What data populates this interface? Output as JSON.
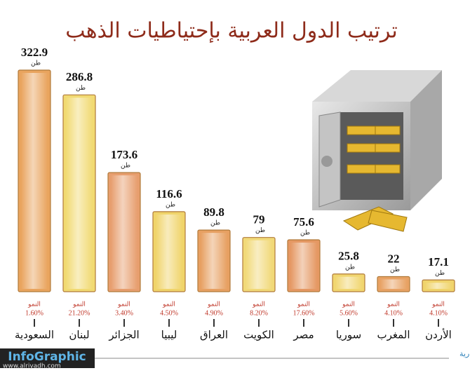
{
  "chart_data": {
    "type": "bar",
    "title": "ترتيب الدول العربية بإحتياطيات الذهب",
    "unit": "طن",
    "growth_label": "النمو",
    "categories": [
      "السعودية",
      "لبنان",
      "الجزائر",
      "ليبيا",
      "العراق",
      "الكويت",
      "مصر",
      "سوريا",
      "المغرب",
      "الأردن"
    ],
    "values": [
      322.9,
      286.8,
      173.6,
      116.6,
      89.8,
      79,
      75.6,
      25.8,
      22,
      17.1
    ],
    "growth": [
      "1.60%",
      "21.20%",
      "3.40%",
      "4.50%",
      "4.90%",
      "8.20%",
      "17.60%",
      "5.60%",
      "4.10%",
      "4.10%"
    ],
    "colors": [
      "#e9a45e",
      "#f1da72",
      "#e79e6e",
      "#f0d46a",
      "#e7a062",
      "#f1d978",
      "#e59863",
      "#f1d670",
      "#e8a264",
      "#f0d46c"
    ],
    "footer": {
      "brand": "InfoGraphic",
      "site": "www.alriyadh.com",
      "source": "مركز الرياض للمعلومات والدراسات الاستشارية"
    }
  }
}
